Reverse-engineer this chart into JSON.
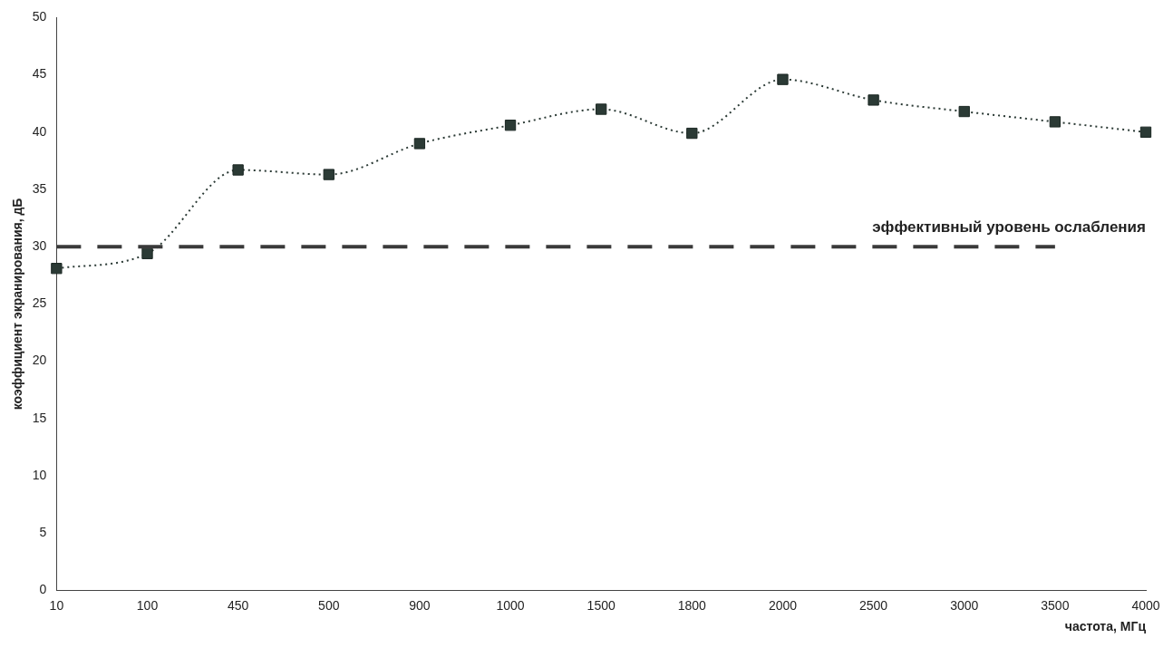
{
  "chart_data": {
    "type": "line",
    "xlabel": "частота, МГц",
    "ylabel": "коэффициент экранирования, дБ",
    "categories": [
      "10",
      "100",
      "450",
      "500",
      "900",
      "1000",
      "1500",
      "1800",
      "2000",
      "2500",
      "3000",
      "3500",
      "4000"
    ],
    "series": [
      {
        "color": "#2b3a35",
        "values": [
          28.1,
          29.4,
          36.7,
          36.3,
          39.0,
          40.6,
          42.0,
          39.9,
          44.6,
          42.8,
          41.8,
          40.9,
          40.0
        ]
      }
    ],
    "ylim": [
      0,
      50
    ],
    "yticks": [
      0,
      5,
      10,
      15,
      20,
      25,
      30,
      35,
      40,
      45,
      50
    ],
    "grid": false,
    "legend": false,
    "marker": "square",
    "line_style": "dotted",
    "ref_lines": [
      {
        "axis": "y",
        "value": 30,
        "label": "эффективный уровень ослабления",
        "color": "#3a3a3a",
        "line_style": "dashed"
      }
    ]
  }
}
